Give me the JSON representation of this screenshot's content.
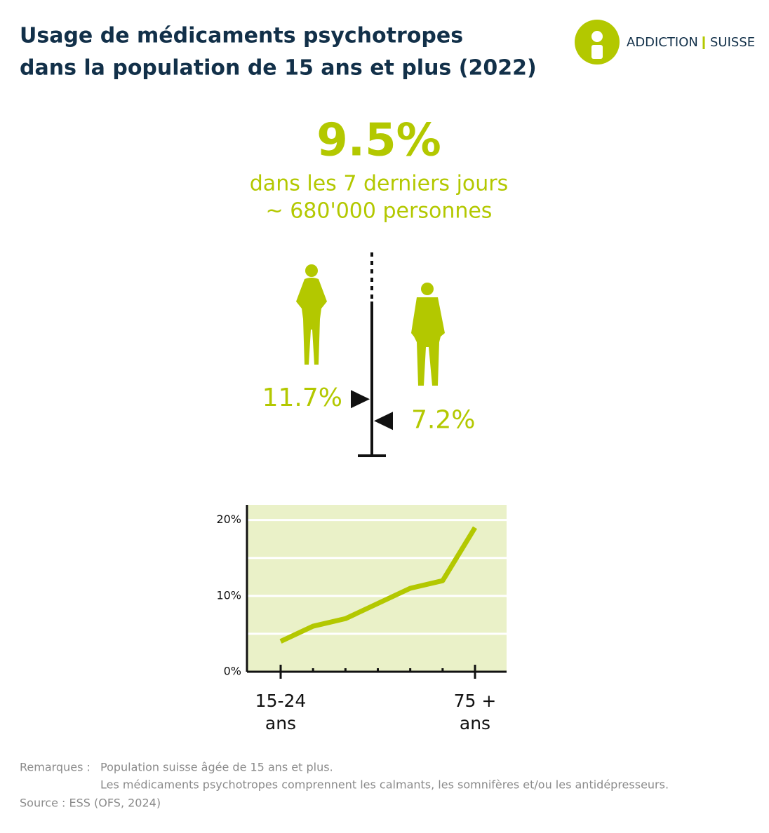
{
  "header": {
    "title": [
      "Usage de médicaments psychotropes",
      "dans la population de 15 ans et plus (2022)"
    ],
    "logo": [
      "ADDICTION",
      "SUISSE"
    ]
  },
  "highlight": {
    "value": "9.5%",
    "lines": [
      "dans les 7 derniers jours",
      "~ 680'000 personnes"
    ]
  },
  "chart_data": [
    {
      "type": "marker",
      "categories": [
        null,
        null
      ],
      "values": [
        11.7,
        7.2
      ],
      "value_labels": [
        "11.7%",
        "7.2%"
      ],
      "color": "#b3c800",
      "ylim": [
        0,
        42
      ]
    },
    {
      "type": "line",
      "categories": [
        "15-24 ans",
        null,
        null,
        null,
        null,
        null,
        "75 + ans"
      ],
      "values": [
        4,
        6,
        7,
        9,
        11,
        12,
        19
      ],
      "color": "#b3c800",
      "ylim": [
        0,
        22
      ],
      "yticks": [
        {
          "value": 0,
          "label": "0%"
        },
        {
          "value": 10,
          "label": "10%"
        },
        {
          "value": 20,
          "label": "20%"
        }
      ],
      "minor_yticks": [
        5,
        15
      ],
      "grid": true,
      "background": "#eaf1c8"
    }
  ],
  "notes": {
    "remarks_label": "Remarques :",
    "remarks": [
      "Population suisse âgée de 15 ans et plus.",
      "Les médicaments psychotropes comprennent les calmants, les somnifères et/ou les antidépresseurs."
    ],
    "source": "Source : ESS (OFS, 2024)"
  }
}
